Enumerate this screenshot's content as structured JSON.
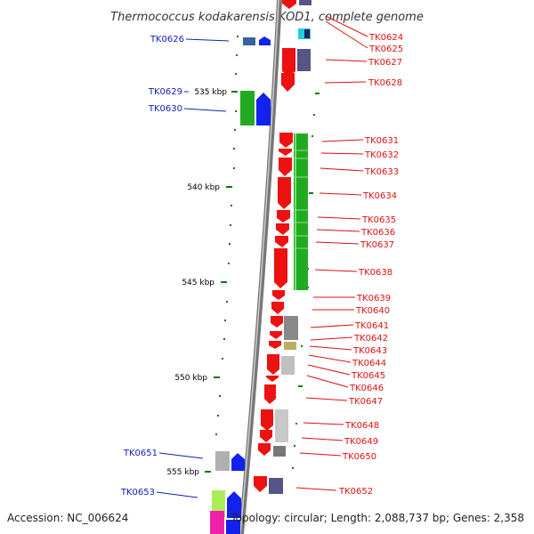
{
  "title": "Thermococcus kodakarensis KOD1, complete genome",
  "footer": {
    "accession": "Accession: NC_006624",
    "summary": "Topology: circular; Length: 2,088,737 bp; Genes: 2,358"
  },
  "colors": {
    "forward_cds": "#ee1111",
    "conserved_green": "#22aa22",
    "blue_arrow": "#1122ee",
    "slate": "#555588",
    "gray": "#999999",
    "olive": "#b8b060",
    "lime": "#aaee55",
    "magenta": "#ee22aa",
    "cyan": "#22ccdd",
    "backbone": "#888888",
    "tick": "#117711"
  },
  "ticks": [
    {
      "label": "535 kbp"
    },
    {
      "label": "540 kbp"
    },
    {
      "label": "545 kbp"
    },
    {
      "label": "550 kbp"
    },
    {
      "label": "555 kbp"
    }
  ],
  "gene_labels_right": [
    "TK0624",
    "TK0625",
    "TK0627",
    "TK0628",
    "TK0631",
    "TK0632",
    "TK0633",
    "TK0634",
    "TK0635",
    "TK0636",
    "TK0637",
    "TK0638",
    "TK0639",
    "TK0640",
    "TK0641",
    "TK0642",
    "TK0643",
    "TK0644",
    "TK0645",
    "TK0646",
    "TK0647",
    "TK0648",
    "TK0649",
    "TK0650",
    "TK0652"
  ],
  "gene_labels_left": [
    "TK0626",
    "TK0629",
    "TK0630",
    "TK0651",
    "TK0653"
  ]
}
